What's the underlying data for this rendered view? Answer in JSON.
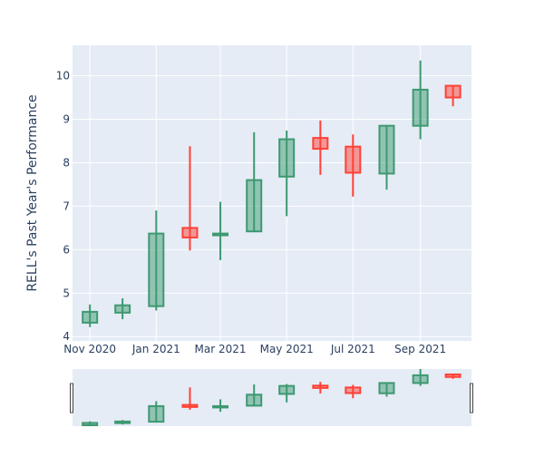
{
  "chart_data": {
    "type": "candlestick",
    "ylabel": "RELL's Past Year's Performance",
    "y_ticks": [
      4,
      5,
      6,
      7,
      8,
      9,
      10
    ],
    "x_ticks": [
      {
        "label": "Nov 2020",
        "x": "2020-11-01"
      },
      {
        "label": "Jan 2021",
        "x": "2021-01-01"
      },
      {
        "label": "Mar 2021",
        "x": "2021-03-01"
      },
      {
        "label": "May 2021",
        "x": "2021-05-01"
      },
      {
        "label": "Jul 2021",
        "x": "2021-07-01"
      },
      {
        "label": "Sep 2021",
        "x": "2021-09-01"
      }
    ],
    "ylim": [
      3.9,
      10.7
    ],
    "xlim": [
      "2020-10-16",
      "2021-10-18"
    ],
    "colors": {
      "increasing": "#3D9970",
      "decreasing": "#FF4136",
      "plot_bg": "#E5ECF6",
      "grid": "#FFFFFF",
      "axis_text": "#2a3f5f"
    },
    "candles": [
      {
        "date": "2020-11-01",
        "open": 4.32,
        "high": 4.74,
        "low": 4.22,
        "close": 4.57
      },
      {
        "date": "2020-12-01",
        "open": 4.55,
        "high": 4.88,
        "low": 4.4,
        "close": 4.72
      },
      {
        "date": "2021-01-01",
        "open": 4.7,
        "high": 6.9,
        "low": 4.6,
        "close": 6.37
      },
      {
        "date": "2021-02-01",
        "open": 6.5,
        "high": 8.38,
        "low": 5.98,
        "close": 6.28
      },
      {
        "date": "2021-03-01",
        "open": 6.33,
        "high": 7.1,
        "low": 5.76,
        "close": 6.37
      },
      {
        "date": "2021-04-01",
        "open": 6.42,
        "high": 8.7,
        "low": 6.4,
        "close": 7.6
      },
      {
        "date": "2021-05-01",
        "open": 7.68,
        "high": 8.74,
        "low": 6.77,
        "close": 8.54
      },
      {
        "date": "2021-06-01",
        "open": 8.57,
        "high": 8.97,
        "low": 7.72,
        "close": 8.32
      },
      {
        "date": "2021-07-01",
        "open": 8.37,
        "high": 8.65,
        "low": 7.22,
        "close": 7.77
      },
      {
        "date": "2021-08-01",
        "open": 7.75,
        "high": 8.87,
        "low": 7.38,
        "close": 8.85
      },
      {
        "date": "2021-09-01",
        "open": 8.85,
        "high": 10.35,
        "low": 8.54,
        "close": 9.68
      },
      {
        "date": "2021-10-01",
        "open": 9.77,
        "high": 9.77,
        "low": 9.3,
        "close": 9.5
      }
    ]
  }
}
